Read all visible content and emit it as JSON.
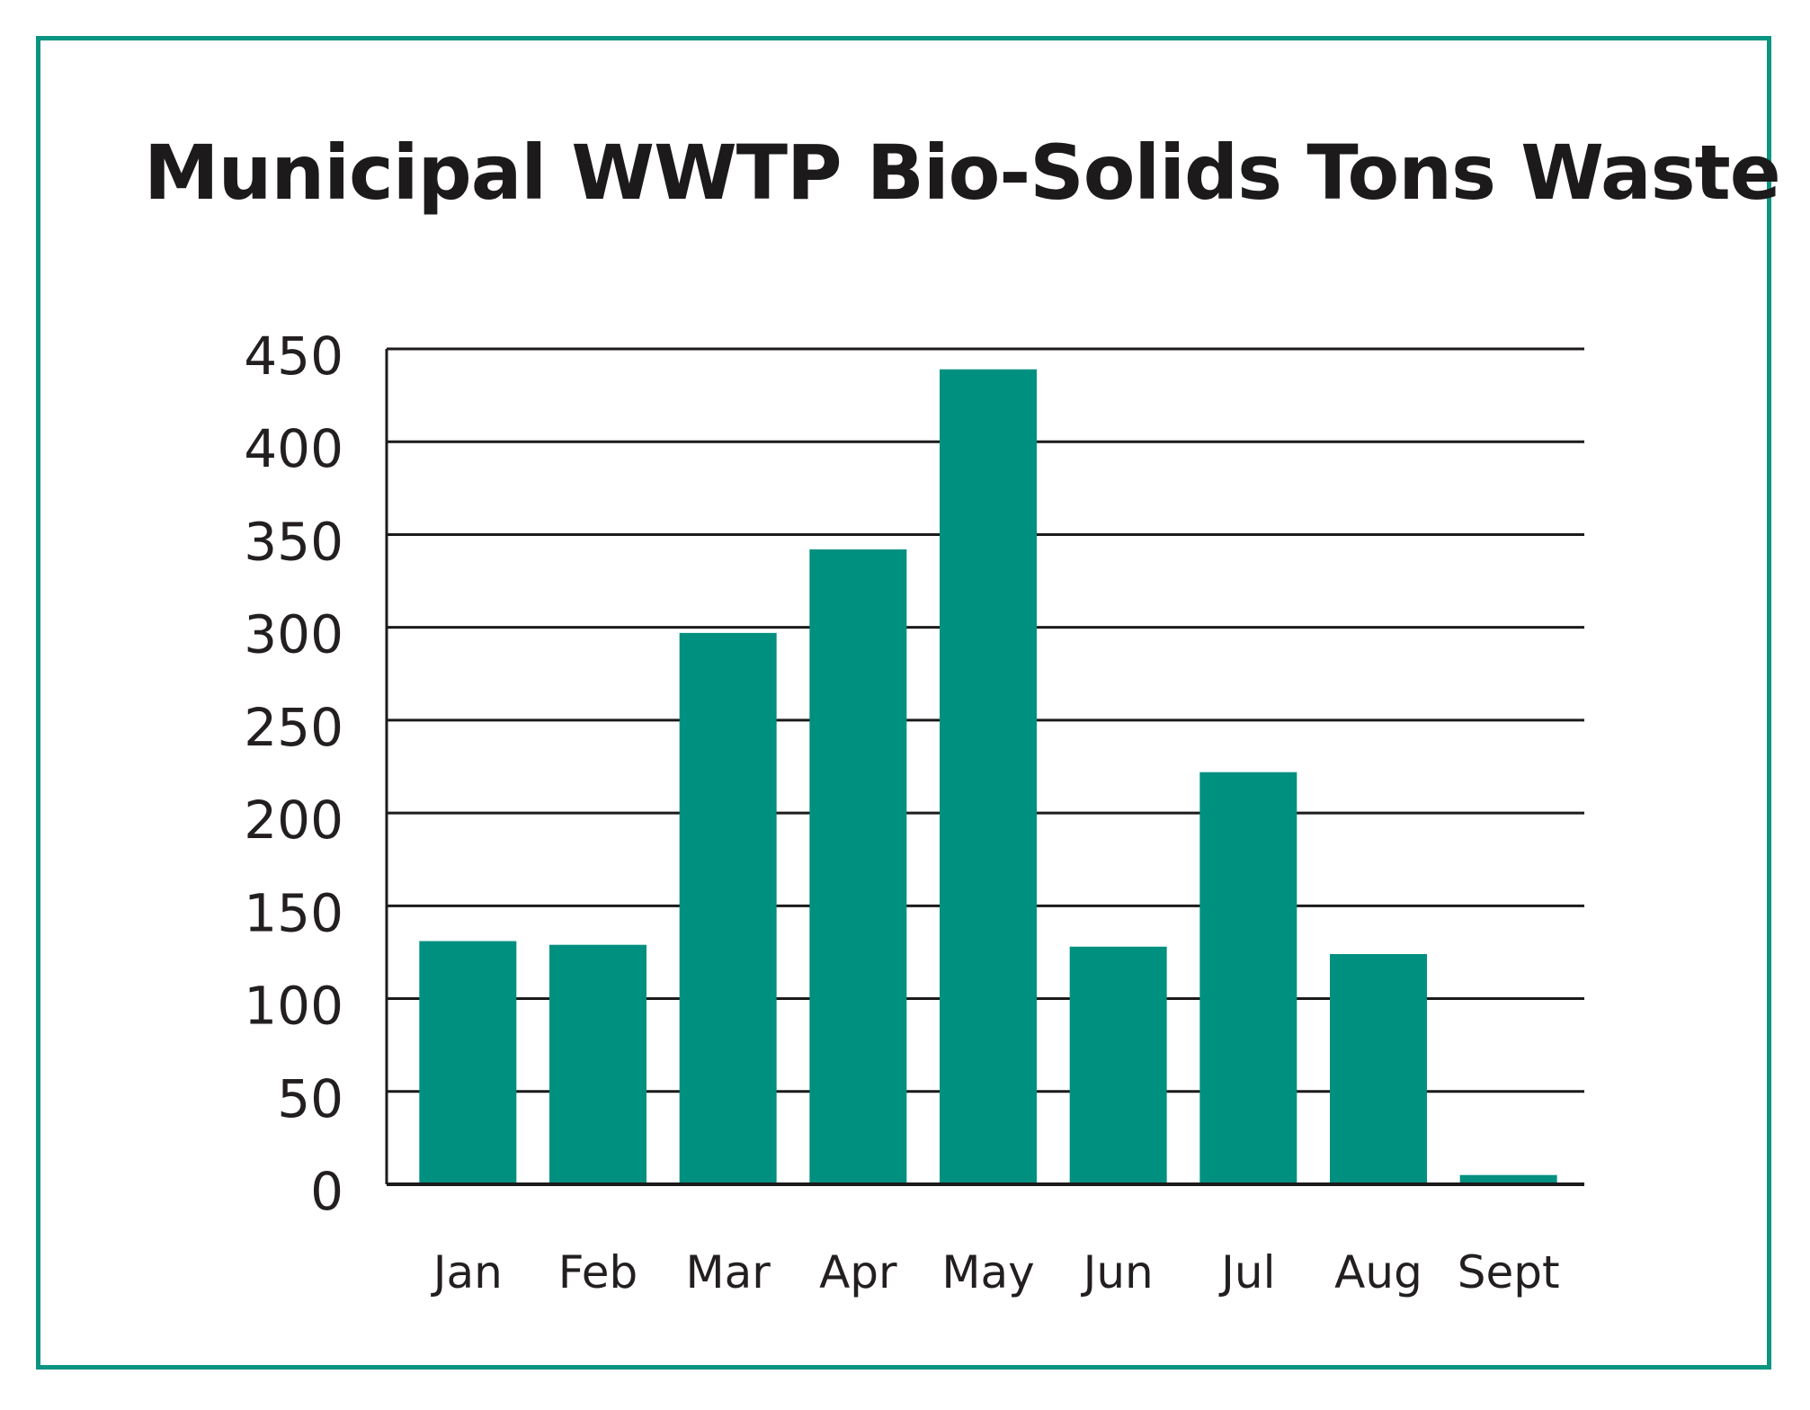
{
  "chart_data": {
    "type": "bar",
    "title": "Municipal WWTP Bio-Solids Tons Waste",
    "xlabel": "",
    "ylabel": "",
    "categories": [
      "Jan",
      "Feb",
      "Mar",
      "Apr",
      "May",
      "Jun",
      "Jul",
      "Aug",
      "Sept"
    ],
    "values": [
      131,
      129,
      297,
      342,
      439,
      128,
      222,
      124,
      5
    ],
    "ylim": [
      0,
      450
    ],
    "yticks": [
      "0",
      "50",
      "100",
      "150",
      "200",
      "250",
      "300",
      "350",
      "400",
      "450"
    ],
    "grid": true,
    "legend": "none",
    "colors": {
      "bar": "#009080",
      "frame": "#0a9481",
      "grid": "#1c1a1a",
      "text": "#231f20"
    }
  }
}
